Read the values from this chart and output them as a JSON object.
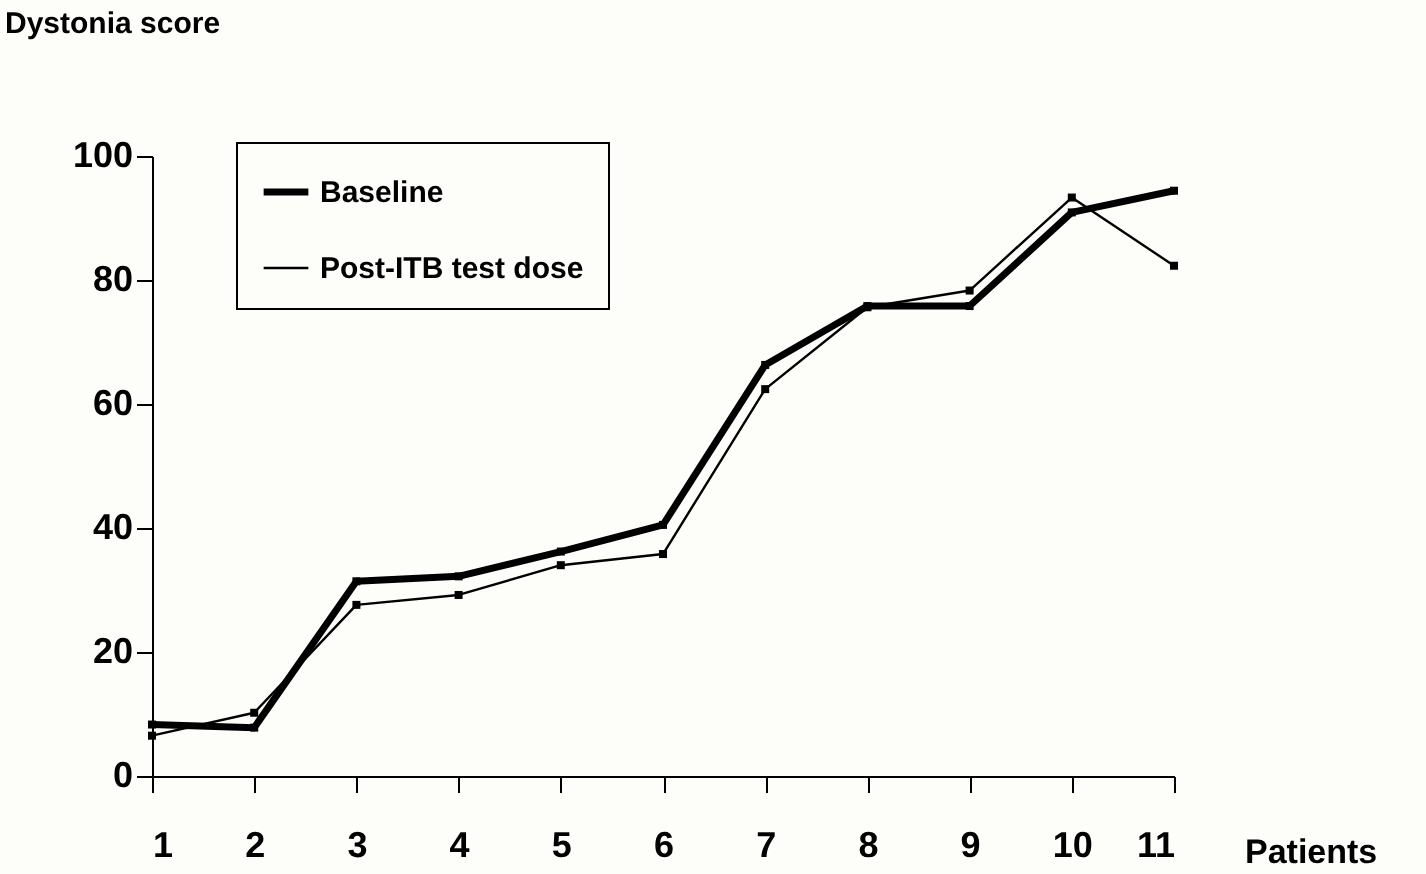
{
  "chart_data": {
    "type": "line",
    "xlabel": "Patients",
    "ylabel": "Dystonia score",
    "x": [
      1,
      2,
      3,
      4,
      5,
      6,
      7,
      8,
      9,
      10,
      11
    ],
    "series": [
      {
        "name": "Baseline",
        "color": "#000000",
        "values": [
          8.3,
          7.8,
          31.4,
          32.2,
          36.2,
          40.5,
          66.3,
          75.8,
          75.8,
          90.9,
          94.4
        ]
      },
      {
        "name": "Post-ITB test dose",
        "color": "#000000",
        "values": [
          6.5,
          10.2,
          27.6,
          29.2,
          34,
          35.8,
          62.4,
          75.6,
          78.3,
          93.3,
          82.3
        ]
      }
    ],
    "xlim": [
      1,
      11
    ],
    "xticks": [
      1,
      2,
      3,
      4,
      5,
      6,
      7,
      8,
      9,
      10,
      11
    ],
    "ylim": [
      0,
      100
    ],
    "yticks": [
      0,
      20,
      40,
      60,
      80,
      100
    ],
    "grid": false,
    "legend": "top left",
    "marker": "square",
    "line_style": "solid"
  }
}
